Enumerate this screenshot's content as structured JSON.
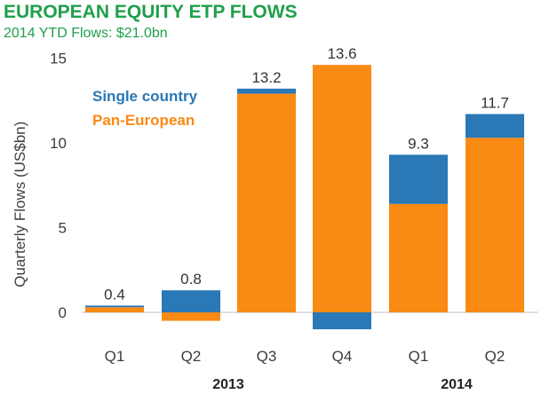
{
  "header": {
    "title": "EUROPEAN EQUITY ETP FLOWS",
    "subtitle": "2014 YTD Flows: $21.0bn"
  },
  "colors": {
    "title": "#1fa04a",
    "single_country": "#2a78b5",
    "pan_european": "#f98a13"
  },
  "chart_data": {
    "type": "bar",
    "stacked": true,
    "ylabel": "Quarterly Flows (US$bn)",
    "xlabel": "",
    "ylim": [
      -1.5,
      15
    ],
    "yticks": [
      0,
      5,
      10,
      15
    ],
    "categories": [
      "Q1",
      "Q2",
      "Q3",
      "Q4",
      "Q1",
      "Q2"
    ],
    "year_groups": [
      {
        "label": "2013",
        "quarters": [
          0,
          1,
          2,
          3
        ]
      },
      {
        "label": "2014",
        "quarters": [
          4,
          5
        ]
      }
    ],
    "series": [
      {
        "name": "Pan-European",
        "color": "#f98a13",
        "values": [
          0.3,
          -0.5,
          12.9,
          14.6,
          6.4,
          10.3
        ]
      },
      {
        "name": "Single country",
        "color": "#2a78b5",
        "values": [
          0.1,
          1.3,
          0.3,
          -1.0,
          2.9,
          1.4
        ]
      }
    ],
    "totals": [
      "0.4",
      "0.8",
      "13.2",
      "13.6",
      "9.3",
      "11.7"
    ],
    "legend": [
      "Single country",
      "Pan-European"
    ],
    "legend_position": "upper-left",
    "grid": false
  }
}
